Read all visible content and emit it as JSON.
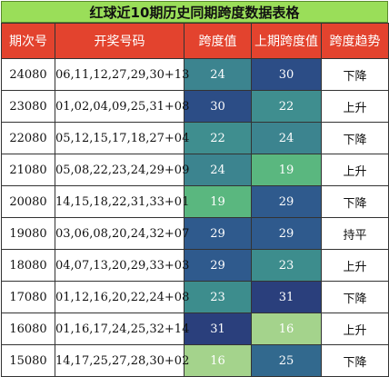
{
  "title": "红球近10期历史同期跨度数据表格",
  "headers": [
    "期次号",
    "开奖号码",
    "跨度值",
    "上期跨度值",
    "跨度趋势"
  ],
  "rows": [
    {
      "issue": "24080",
      "numbers": "06,11,12,27,29,30+13",
      "span": "24",
      "prev_span": "30",
      "trend": "下降"
    },
    {
      "issue": "23080",
      "numbers": "01,02,04,09,25,31+08",
      "span": "30",
      "prev_span": "22",
      "trend": "上升"
    },
    {
      "issue": "22080",
      "numbers": "05,12,15,17,18,27+04",
      "span": "22",
      "prev_span": "24",
      "trend": "下降"
    },
    {
      "issue": "21080",
      "numbers": "05,08,22,23,24,29+09",
      "span": "24",
      "prev_span": "19",
      "trend": "上升"
    },
    {
      "issue": "20080",
      "numbers": "14,15,18,22,31,33+01",
      "span": "19",
      "prev_span": "29",
      "trend": "下降"
    },
    {
      "issue": "19080",
      "numbers": "03,06,08,20,24,32+07",
      "span": "29",
      "prev_span": "29",
      "trend": "持平"
    },
    {
      "issue": "18080",
      "numbers": "04,07,13,20,29,33+03",
      "span": "29",
      "prev_span": "23",
      "trend": "上升"
    },
    {
      "issue": "17080",
      "numbers": "01,12,16,20,22,24+08",
      "span": "23",
      "prev_span": "31",
      "trend": "下降"
    },
    {
      "issue": "16080",
      "numbers": "01,16,17,24,25,32+14",
      "span": "31",
      "prev_span": "16",
      "trend": "上升"
    },
    {
      "issue": "15080",
      "numbers": "14,17,25,27,28,30+02",
      "span": "16",
      "prev_span": "25",
      "trend": "下降"
    }
  ],
  "colors": {
    "title_bg": "#9ade59",
    "header_bg": "#e3432e",
    "span_16": "#a4d38c",
    "span_19": "#5ab77f",
    "span_22": "#3f8e8f",
    "span_23": "#3d8d8d",
    "span_24": "#3c848f",
    "span_25": "#32698e",
    "span_29": "#2f5a8d",
    "span_30": "#2c4d86",
    "span_31": "#2a3f7c"
  }
}
